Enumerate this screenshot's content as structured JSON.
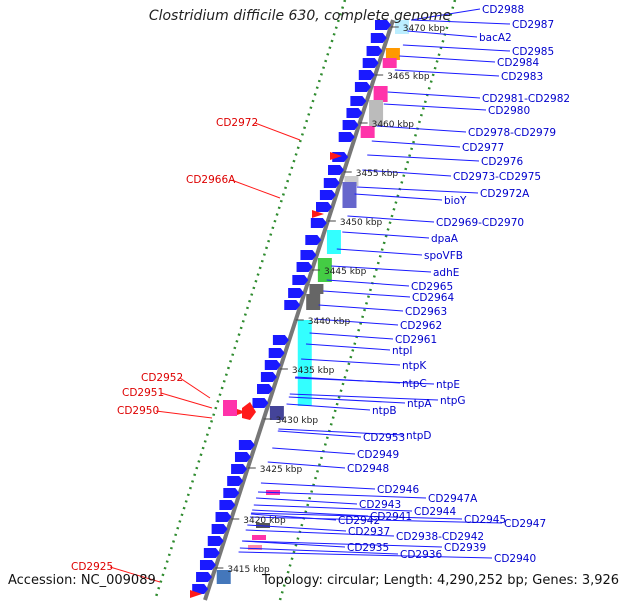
{
  "map": {
    "title": "Clostridium difficile 630, complete genome",
    "accession": "Accession: NC_009089",
    "summary": "Topology: circular; Length: 4,290,252 bp; Genes: 3,926"
  },
  "colors": {
    "backbone": "#888888",
    "blue": "#1a1aff",
    "red": "#ff1a1a",
    "green": "#2e8b2e",
    "cyan": "#33ffff",
    "magenta": "#ff33aa",
    "orange": "#ff9900"
  },
  "kbp_ticks": [
    "3470 kbp",
    "3465 kbp",
    "3460 kbp",
    "3455 kbp",
    "3450 kbp",
    "3445 kbp",
    "3440 kbp",
    "3435 kbp",
    "3430 kbp",
    "3425 kbp",
    "3420 kbp",
    "3415 kbp"
  ],
  "blue_labels": [
    "CD2988",
    "CD2987",
    "bacA2",
    "CD2985",
    "CD2984",
    "CD2983",
    "CD2981-CD2982",
    "CD2980",
    "CD2978-CD2979",
    "CD2977",
    "CD2976",
    "CD2973-CD2975",
    "CD2972A",
    "bioY",
    "CD2969-CD2970",
    "dpaA",
    "spoVFB",
    "adhE",
    "CD2965",
    "CD2964",
    "CD2963",
    "CD2962",
    "CD2961",
    "ntpI",
    "ntpK",
    "ntpC",
    "ntpE",
    "ntpA",
    "ntpG",
    "ntpB",
    "ntpD",
    "CD2953",
    "CD2949",
    "CD2948",
    "CD2946",
    "CD2947A",
    "CD2944",
    "CD2943",
    "CD2945",
    "CD2947",
    "CD2941",
    "CD2942",
    "CD2938-CD2942",
    "CD2937",
    "CD2939",
    "CD2935",
    "CD2936",
    "CD2940"
  ],
  "red_labels": [
    "CD2972",
    "CD2966A",
    "CD2952",
    "CD2951",
    "CD2950",
    "CD2925"
  ]
}
